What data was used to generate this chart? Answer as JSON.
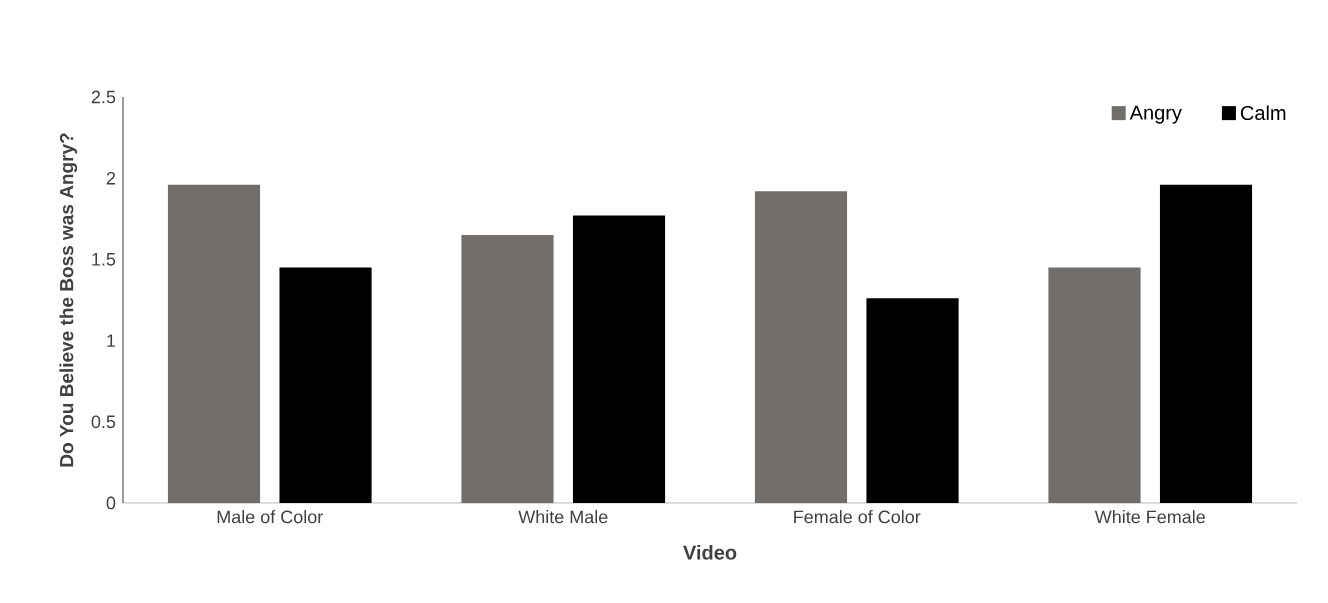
{
  "chart_data": {
    "type": "bar",
    "xlabel": "Video",
    "ylabel": "Do You Believe the Boss was Angry?",
    "categories": [
      "Male of Color",
      "White Male",
      "Female of Color",
      "White Female"
    ],
    "series": [
      {
        "name": "Angry",
        "color": "#716d6b",
        "values": [
          1.96,
          1.65,
          1.92,
          1.45
        ]
      },
      {
        "name": "Calm",
        "color": "#000000",
        "values": [
          1.45,
          1.77,
          1.26,
          1.96
        ]
      }
    ],
    "ylim": [
      0,
      2.5
    ],
    "yticks": [
      0,
      0.5,
      1,
      1.5,
      2,
      2.5
    ],
    "grid": false,
    "legend": "top right"
  }
}
